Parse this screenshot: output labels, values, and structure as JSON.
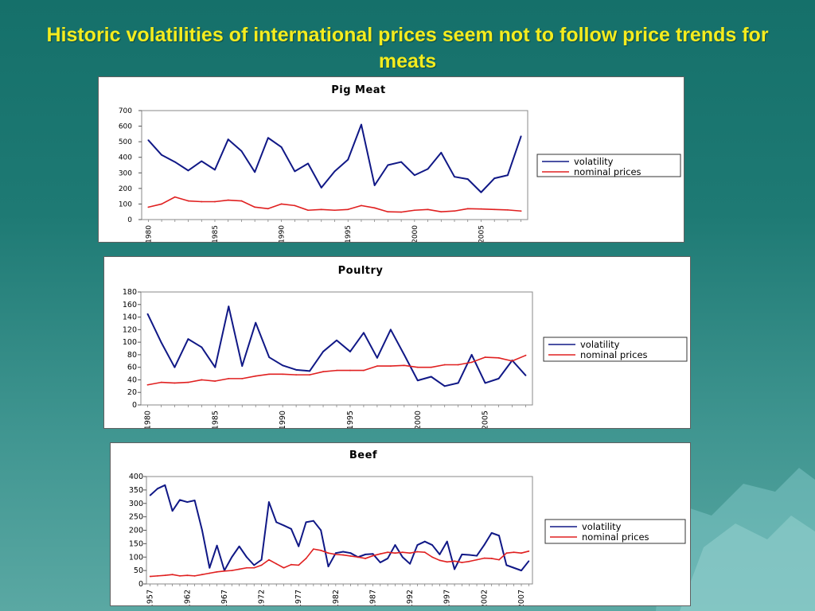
{
  "slide": {
    "title": "Historic volatilities of international prices seem not to follow price trends for meats"
  },
  "colors": {
    "volatility": "#101886",
    "nominal_prices": "#e02020"
  },
  "chart_data": [
    {
      "type": "line",
      "title": "Pig Meat",
      "x": [
        1980,
        1981,
        1982,
        1983,
        1984,
        1985,
        1986,
        1987,
        1988,
        1989,
        1990,
        1991,
        1992,
        1993,
        1994,
        1995,
        1996,
        1997,
        1998,
        1999,
        2000,
        2001,
        2002,
        2003,
        2004,
        2005,
        2006,
        2007,
        2008
      ],
      "xtick_labels": [
        "1980",
        "1985",
        "1990",
        "1995",
        "2000",
        "2005"
      ],
      "xtick_values": [
        1980,
        1985,
        1990,
        1995,
        2000,
        2005
      ],
      "ylim": [
        0,
        700
      ],
      "yticks": [
        0,
        100,
        200,
        300,
        400,
        500,
        600,
        700
      ],
      "legend": "right",
      "series": [
        {
          "name": "volatility",
          "values": [
            510,
            415,
            370,
            315,
            375,
            320,
            515,
            440,
            305,
            525,
            465,
            310,
            360,
            205,
            310,
            385,
            610,
            220,
            350,
            370,
            285,
            325,
            430,
            275,
            260,
            175,
            265,
            285,
            535
          ]
        },
        {
          "name": "nominal prices",
          "values": [
            80,
            100,
            145,
            120,
            115,
            115,
            125,
            120,
            80,
            70,
            100,
            90,
            60,
            65,
            60,
            65,
            90,
            75,
            50,
            48,
            60,
            65,
            50,
            55,
            70,
            68,
            65,
            62,
            55
          ]
        }
      ]
    },
    {
      "type": "line",
      "title": "Poultry",
      "x": [
        1980,
        1981,
        1982,
        1983,
        1984,
        1985,
        1986,
        1987,
        1988,
        1989,
        1990,
        1991,
        1992,
        1993,
        1994,
        1995,
        1996,
        1997,
        1998,
        1999,
        2000,
        2001,
        2002,
        2003,
        2004,
        2005,
        2006,
        2007,
        2008
      ],
      "xtick_labels": [
        "1980",
        "1985",
        "1990",
        "1995",
        "2000",
        "2005"
      ],
      "xtick_values": [
        1980,
        1985,
        1990,
        1995,
        2000,
        2005
      ],
      "ylim": [
        0,
        180
      ],
      "yticks": [
        0,
        20,
        40,
        60,
        80,
        100,
        120,
        140,
        160,
        180
      ],
      "legend": "right",
      "series": [
        {
          "name": "volatility",
          "values": [
            145,
            100,
            60,
            105,
            92,
            60,
            157,
            62,
            131,
            76,
            63,
            56,
            54,
            85,
            103,
            85,
            115,
            75,
            120,
            80,
            39,
            45,
            30,
            35,
            80,
            35,
            42,
            71,
            47
          ]
        },
        {
          "name": "nominal prices",
          "values": [
            32,
            36,
            35,
            36,
            40,
            38,
            42,
            42,
            46,
            49,
            49,
            48,
            48,
            53,
            55,
            55,
            55,
            62,
            62,
            63,
            60,
            60,
            64,
            64,
            68,
            76,
            75,
            70,
            79
          ]
        }
      ]
    },
    {
      "type": "line",
      "title": "Beef",
      "x": [
        1957,
        1958,
        1959,
        1960,
        1961,
        1962,
        1963,
        1964,
        1965,
        1966,
        1967,
        1968,
        1969,
        1970,
        1971,
        1972,
        1973,
        1974,
        1975,
        1976,
        1977,
        1978,
        1979,
        1980,
        1981,
        1982,
        1983,
        1984,
        1985,
        1986,
        1987,
        1988,
        1989,
        1990,
        1991,
        1992,
        1993,
        1994,
        1995,
        1996,
        1997,
        1998,
        1999,
        2000,
        2001,
        2002,
        2003,
        2004,
        2005,
        2006,
        2007,
        2008
      ],
      "xtick_labels": [
        "1957",
        "1962",
        "1967",
        "1972",
        "1977",
        "1982",
        "1987",
        "1992",
        "1997",
        "2002",
        "2007"
      ],
      "xtick_values": [
        1957,
        1962,
        1967,
        1972,
        1977,
        1982,
        1987,
        1992,
        1997,
        2002,
        2007
      ],
      "ylim": [
        0,
        400
      ],
      "yticks": [
        0,
        50,
        100,
        150,
        200,
        250,
        300,
        350,
        400
      ],
      "legend": "right",
      "series": [
        {
          "name": "volatility",
          "values": [
            330,
            355,
            368,
            272,
            313,
            305,
            311,
            200,
            60,
            143,
            50,
            100,
            140,
            100,
            70,
            90,
            305,
            230,
            218,
            205,
            140,
            230,
            235,
            200,
            65,
            115,
            120,
            115,
            100,
            110,
            112,
            80,
            95,
            145,
            100,
            75,
            145,
            158,
            145,
            110,
            158,
            55,
            110,
            108,
            105,
            145,
            190,
            180,
            70,
            60,
            50,
            85
          ]
        },
        {
          "name": "nominal prices",
          "values": [
            28,
            30,
            32,
            35,
            30,
            32,
            30,
            35,
            40,
            45,
            48,
            50,
            55,
            60,
            60,
            70,
            90,
            75,
            60,
            72,
            70,
            95,
            130,
            125,
            115,
            110,
            108,
            104,
            100,
            95,
            105,
            112,
            118,
            115,
            118,
            115,
            120,
            118,
            100,
            88,
            82,
            85,
            80,
            84,
            90,
            96,
            95,
            90,
            115,
            118,
            115,
            122
          ]
        }
      ]
    }
  ]
}
